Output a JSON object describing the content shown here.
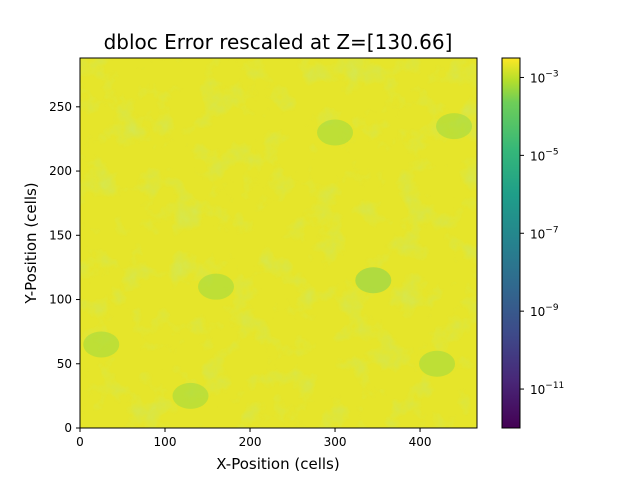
{
  "chart_data": {
    "type": "heatmap",
    "title": "dbloc Error rescaled at Z=[130.66]",
    "xlabel": "X-Position (cells)",
    "ylabel": "Y-Position (cells)",
    "xlim": [
      0,
      467
    ],
    "ylim": [
      0,
      288
    ],
    "x_ticks": [
      {
        "value": 0,
        "label": "0"
      },
      {
        "value": 100,
        "label": "100"
      },
      {
        "value": 200,
        "label": "200"
      },
      {
        "value": 300,
        "label": "300"
      },
      {
        "value": 400,
        "label": "400"
      }
    ],
    "y_ticks": [
      {
        "value": 0,
        "label": "0"
      },
      {
        "value": 50,
        "label": "50"
      },
      {
        "value": 100,
        "label": "100"
      },
      {
        "value": 150,
        "label": "150"
      },
      {
        "value": 200,
        "label": "200"
      },
      {
        "value": 250,
        "label": "250"
      }
    ],
    "colorbar": {
      "scale": "log",
      "colormap": "viridis",
      "range_exponent": [
        -12,
        -2.5
      ],
      "ticks": [
        {
          "exp": -3,
          "label": "10",
          "sup": "−3"
        },
        {
          "exp": -5,
          "label": "10",
          "sup": "−5"
        },
        {
          "exp": -7,
          "label": "10",
          "sup": "−7"
        },
        {
          "exp": -9,
          "label": "10",
          "sup": "−9"
        },
        {
          "exp": -11,
          "label": "10",
          "sup": "−11"
        }
      ]
    },
    "field_summary": {
      "dominant_value_exponent_range": [
        -4.2,
        -2.6
      ],
      "darker_patches": [
        {
          "x": 25,
          "y": 65,
          "exp": -4.3
        },
        {
          "x": 130,
          "y": 25,
          "exp": -4.1
        },
        {
          "x": 300,
          "y": 230,
          "exp": -4.0
        },
        {
          "x": 440,
          "y": 235,
          "exp": -4.0
        },
        {
          "x": 345,
          "y": 115,
          "exp": -4.5
        },
        {
          "x": 160,
          "y": 110,
          "exp": -4.0
        },
        {
          "x": 420,
          "y": 50,
          "exp": -4.0
        }
      ]
    }
  }
}
